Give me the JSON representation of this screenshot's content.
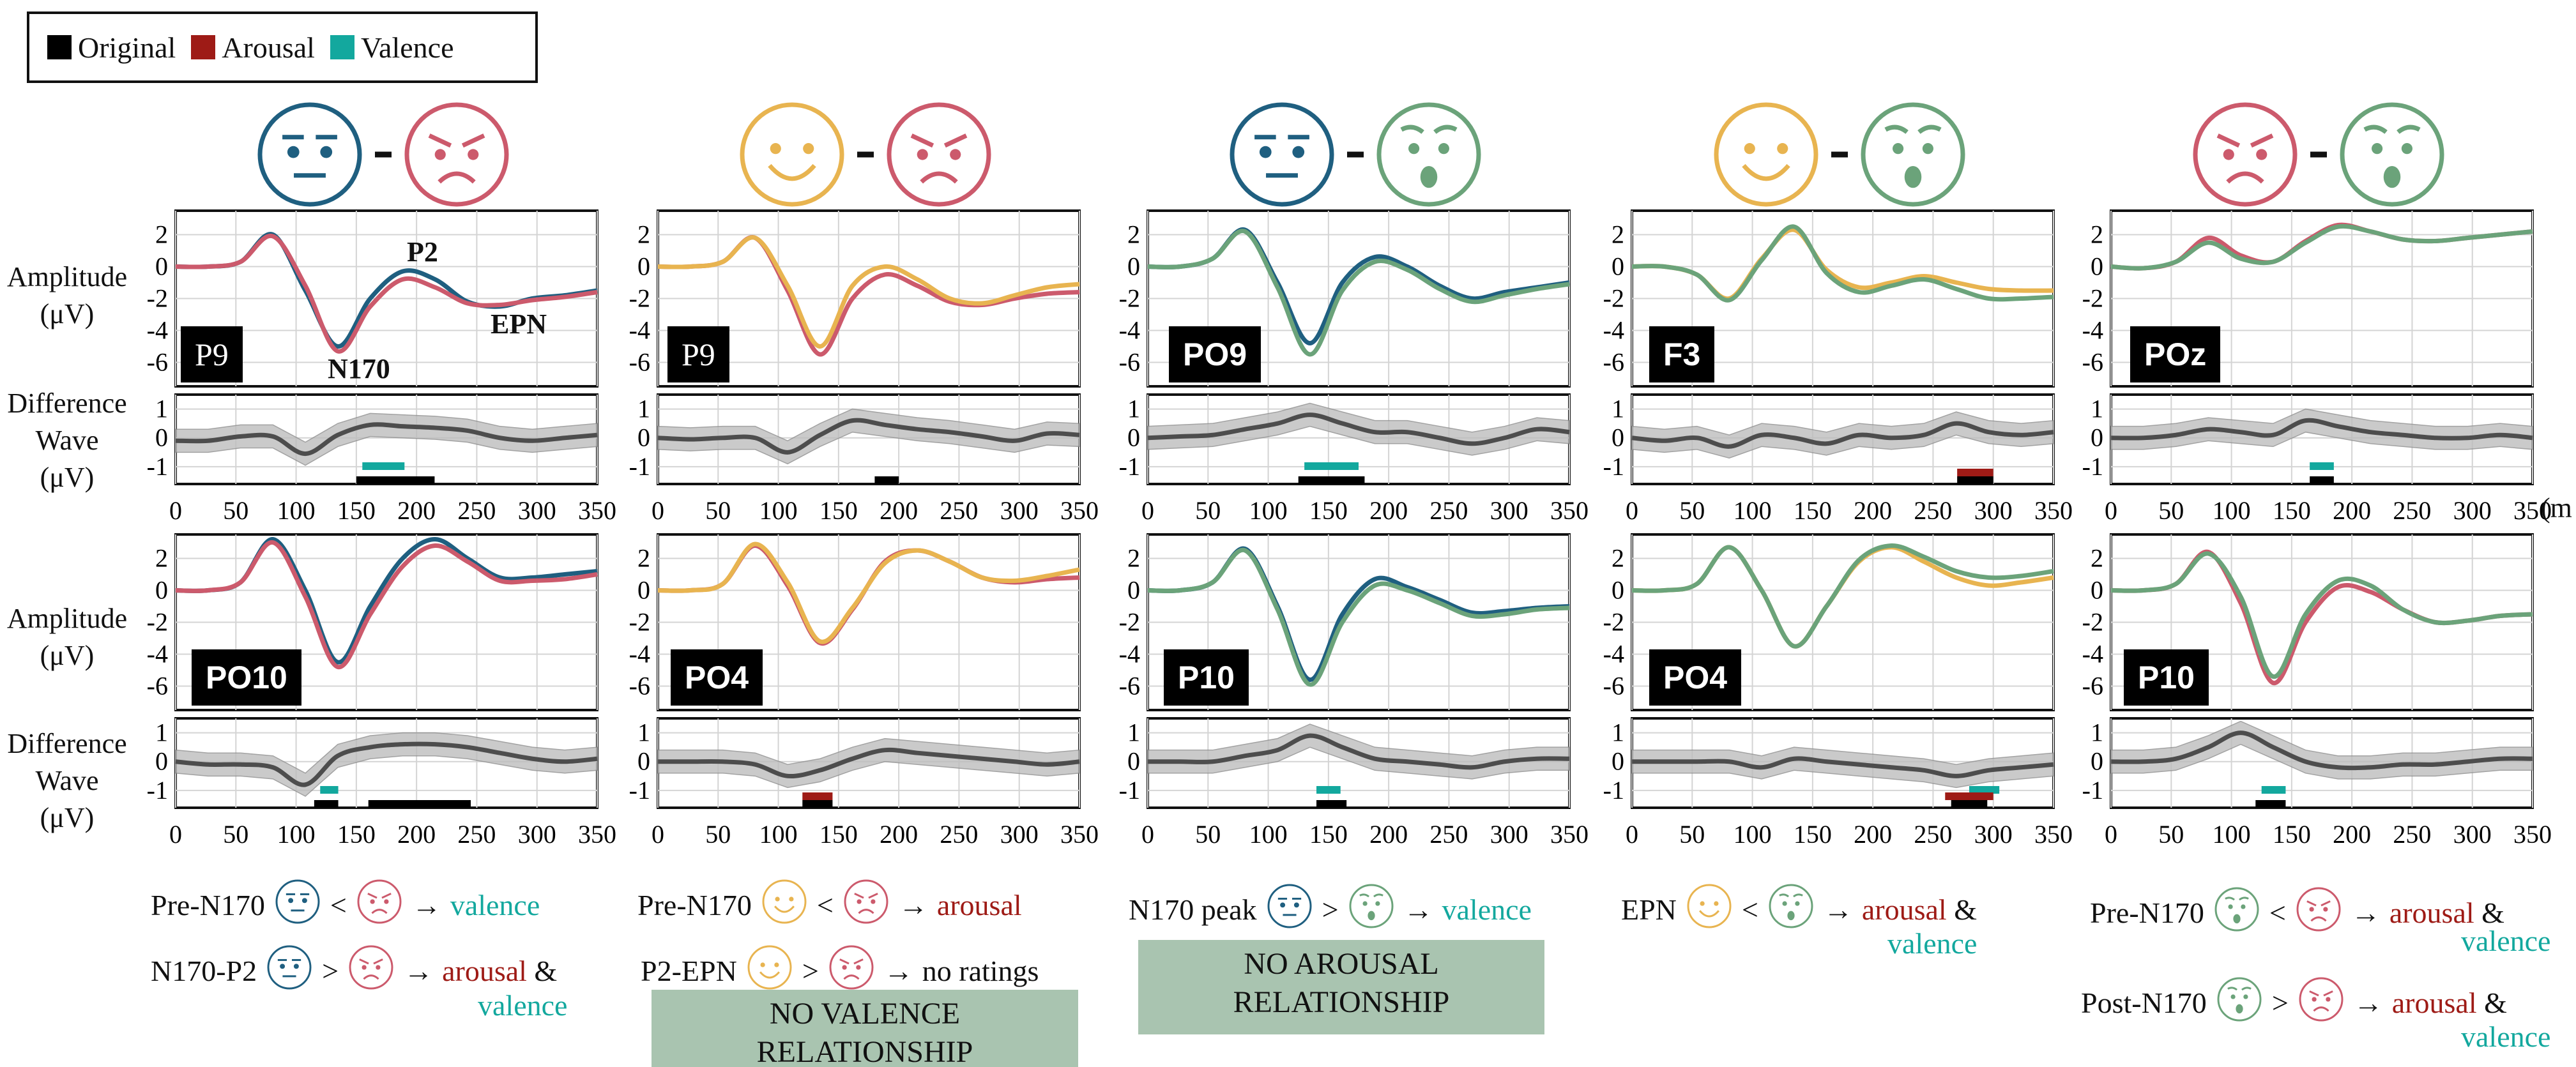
{
  "legend": {
    "items": [
      {
        "label": "Original",
        "color": "#000000"
      },
      {
        "label": "Arousal",
        "color": "#9e1b16"
      },
      {
        "label": "Valence",
        "color": "#13a89e"
      }
    ]
  },
  "row_labels": {
    "amplitude": "Amplitude",
    "amplitude_unit": "(μV)",
    "difference1": "Difference",
    "difference2": "Wave",
    "difference_unit": "(μV)"
  },
  "x_unit_partial": "(m",
  "colors": {
    "neutral": "#1f5f80",
    "angry": "#cc5a6c",
    "happy": "#e8b450",
    "surprised": "#6ba37a",
    "original_trace": "#1f5f80",
    "arousal_marker": "#9e1b16",
    "valence_marker": "#13a89e",
    "no_relationship_box": "#a9c4b0"
  },
  "columns": [
    {
      "faces": [
        "neutral-face",
        "angry-face"
      ]
    },
    {
      "faces": [
        "happy-face",
        "angry-face"
      ]
    },
    {
      "faces": [
        "neutral-face",
        "surprised-face"
      ]
    },
    {
      "faces": [
        "happy-face",
        "surprised-face"
      ]
    },
    {
      "faces": [
        "angry-face",
        "surprised-face"
      ]
    }
  ],
  "erp_annotations": {
    "n170": "N170",
    "p2": "P2",
    "epn": "EPN"
  },
  "channel_labels": [
    "P9",
    "P9",
    "PO9",
    "F3",
    "POz",
    "PO10",
    "PO4",
    "P10",
    "PO4",
    "P10"
  ],
  "findings": {
    "col1": [
      {
        "label": "Pre-N170",
        "op": "<",
        "result": [
          {
            "t": "valence",
            "c": "val"
          }
        ]
      },
      {
        "label": "N170-P2",
        "op": ">",
        "result": [
          {
            "t": "arousal",
            "c": "aro"
          },
          {
            "t": " &",
            "c": ""
          }
        ],
        "result2": "valence"
      }
    ],
    "col2": [
      {
        "label": "Pre-N170",
        "op": "<",
        "result": [
          {
            "t": "arousal",
            "c": "aro"
          }
        ]
      },
      {
        "label": "P2-EPN",
        "op": ">",
        "result": [
          {
            "t": "no ratings",
            "c": ""
          }
        ]
      }
    ],
    "col3": [
      {
        "label": "N170 peak",
        "op": ">",
        "result": [
          {
            "t": "valence",
            "c": "val"
          }
        ]
      }
    ],
    "col4": [
      {
        "label": "EPN",
        "op": "<",
        "result": [
          {
            "t": "arousal",
            "c": "aro"
          },
          {
            "t": " &",
            "c": ""
          }
        ],
        "result2": "valence"
      }
    ],
    "col5": [
      {
        "label": "Pre-N170",
        "op": "<",
        "result": [
          {
            "t": "arousal",
            "c": "aro"
          },
          {
            "t": " &",
            "c": ""
          }
        ],
        "result2": "valence"
      },
      {
        "label": "Post-N170",
        "op": ">",
        "result": [
          {
            "t": "arousal",
            "c": "aro"
          },
          {
            "t": " &",
            "c": ""
          }
        ],
        "result2": "valence"
      }
    ]
  },
  "no_relationship": {
    "valence_l1": "NO VALENCE",
    "valence_l2": "RELATIONSHIP",
    "arousal_l1": "NO AROUSAL",
    "arousal_l2": "RELATIONSHIP"
  },
  "chart_data": {
    "type": "line",
    "x_ticks": [
      0,
      50,
      100,
      150,
      200,
      250,
      300,
      350
    ],
    "xlim": [
      0,
      350
    ],
    "amplitude_yticks": [
      2,
      0,
      -2,
      -4,
      -6
    ],
    "amplitude_ylim": [
      -7.5,
      3.5
    ],
    "difference_yticks": [
      1,
      0,
      -1
    ],
    "difference_ylim": [
      -1.6,
      1.5
    ],
    "grid": true,
    "legend_position": "top-left",
    "panels": [
      {
        "row": 0,
        "col": 0,
        "channel": "P9",
        "series": [
          {
            "color": "#1f5f80",
            "y": [
              0,
              0,
              0.3,
              2.0,
              -1.5,
              -5.0,
              -2.0,
              -0.3,
              -0.8,
              -2.2,
              -2.5,
              -2.0,
              -1.8,
              -1.5
            ]
          },
          {
            "color": "#cc5a6c",
            "y": [
              0,
              0,
              0.3,
              1.9,
              -1.2,
              -5.3,
              -2.5,
              -0.8,
              -1.3,
              -2.3,
              -2.4,
              -2.1,
              -1.9,
              -1.6
            ]
          }
        ],
        "diff": [
          -0.1,
          -0.1,
          0.05,
          0.05,
          -0.55,
          0.1,
          0.45,
          0.4,
          0.35,
          0.25,
          0.0,
          -0.1,
          0.0,
          0.1
        ],
        "markers": [
          {
            "type": "valence",
            "from": 155,
            "to": 190
          },
          {
            "type": "original",
            "from": 150,
            "to": 215
          }
        ]
      },
      {
        "row": 0,
        "col": 1,
        "channel": "P9",
        "series": [
          {
            "color": "#cc5a6c",
            "y": [
              0,
              0,
              0.3,
              1.8,
              -1.5,
              -5.5,
              -2.0,
              -0.5,
              -1.2,
              -2.2,
              -2.4,
              -2.0,
              -1.7,
              -1.6
            ]
          },
          {
            "color": "#e8b450",
            "y": [
              0,
              0,
              0.3,
              1.8,
              -1.2,
              -5.0,
              -1.2,
              0.0,
              -0.8,
              -2.0,
              -2.3,
              -1.8,
              -1.3,
              -1.1
            ]
          }
        ],
        "diff": [
          0,
          -0.05,
          0.0,
          0.0,
          -0.5,
          0.1,
          0.6,
          0.45,
          0.3,
          0.2,
          0.05,
          -0.1,
          0.15,
          0.1
        ],
        "markers": [
          {
            "type": "original",
            "from": 180,
            "to": 200
          }
        ]
      },
      {
        "row": 0,
        "col": 2,
        "channel": "PO9",
        "series": [
          {
            "color": "#1f5f80",
            "y": [
              0,
              0,
              0.5,
              2.3,
              -1.0,
              -4.8,
              -1.0,
              0.6,
              0.0,
              -1.2,
              -2.0,
              -1.6,
              -1.3,
              -1.0
            ]
          },
          {
            "color": "#6ba37a",
            "y": [
              0,
              0,
              0.5,
              2.2,
              -1.3,
              -5.5,
              -1.5,
              0.3,
              -0.2,
              -1.4,
              -2.2,
              -1.8,
              -1.4,
              -1.1
            ]
          }
        ],
        "diff": [
          0,
          0.05,
          0.1,
          0.3,
          0.5,
          0.8,
          0.5,
          0.2,
          0.2,
          0.0,
          -0.2,
          0.0,
          0.3,
          0.2
        ],
        "markers": [
          {
            "type": "valence",
            "from": 130,
            "to": 175
          },
          {
            "type": "original",
            "from": 125,
            "to": 180
          }
        ]
      },
      {
        "row": 0,
        "col": 3,
        "channel": "F3",
        "series": [
          {
            "color": "#e8b450",
            "y": [
              0,
              0,
              -0.5,
              -2.0,
              0.5,
              2.3,
              -0.2,
              -1.3,
              -1.0,
              -0.6,
              -1.0,
              -1.4,
              -1.5,
              -1.5
            ]
          },
          {
            "color": "#6ba37a",
            "y": [
              0,
              0,
              -0.5,
              -2.1,
              0.4,
              2.5,
              -0.4,
              -1.6,
              -1.2,
              -0.8,
              -1.4,
              -2.0,
              -2.0,
              -1.9
            ]
          }
        ],
        "diff": [
          0,
          -0.1,
          0.0,
          -0.3,
          0.1,
          0.0,
          -0.2,
          0.1,
          0.0,
          0.1,
          0.5,
          0.2,
          0.1,
          0.2
        ],
        "markers": [
          {
            "type": "arousal",
            "from": 270,
            "to": 300
          },
          {
            "type": "original",
            "from": 270,
            "to": 300
          }
        ]
      },
      {
        "row": 0,
        "col": 4,
        "channel": "POz",
        "series": [
          {
            "color": "#cc5a6c",
            "y": [
              0,
              -0.1,
              0.3,
              1.8,
              0.7,
              0.3,
              1.6,
              2.6,
              2.2,
              1.7,
              1.6,
              1.8,
              2.0,
              2.2
            ]
          },
          {
            "color": "#6ba37a",
            "y": [
              0,
              -0.1,
              0.3,
              1.5,
              0.5,
              0.3,
              1.5,
              2.5,
              2.2,
              1.7,
              1.6,
              1.8,
              2.0,
              2.2
            ]
          }
        ],
        "diff": [
          0,
          0.0,
          0.1,
          0.3,
          0.2,
          0.1,
          0.6,
          0.4,
          0.2,
          0.1,
          0.0,
          0.0,
          0.1,
          0.0
        ],
        "markers": [
          {
            "type": "valence",
            "from": 165,
            "to": 185
          },
          {
            "type": "original",
            "from": 165,
            "to": 185
          }
        ]
      },
      {
        "row": 1,
        "col": 0,
        "channel": "PO10",
        "series": [
          {
            "color": "#1f5f80",
            "y": [
              0,
              0,
              0.5,
              3.2,
              0.0,
              -4.5,
              -1.0,
              2.0,
              3.2,
              2.0,
              0.8,
              0.8,
              1.0,
              1.2
            ]
          },
          {
            "color": "#cc5a6c",
            "y": [
              0,
              0,
              0.5,
              3.0,
              -0.4,
              -4.8,
              -1.5,
              1.5,
              2.8,
              1.8,
              0.6,
              0.6,
              0.7,
              1.0
            ]
          }
        ],
        "diff": [
          0,
          -0.1,
          -0.1,
          -0.2,
          -0.8,
          0.2,
          0.5,
          0.6,
          0.6,
          0.5,
          0.3,
          0.1,
          0.0,
          0.1
        ],
        "markers": [
          {
            "type": "valence",
            "from": 120,
            "to": 135
          },
          {
            "type": "original",
            "from": 115,
            "to": 135
          },
          {
            "type": "original",
            "from": 160,
            "to": 245
          }
        ]
      },
      {
        "row": 1,
        "col": 1,
        "channel": "PO4",
        "series": [
          {
            "color": "#cc5a6c",
            "y": [
              0,
              0,
              0.4,
              2.8,
              0.3,
              -3.3,
              -1.2,
              1.8,
              2.5,
              1.8,
              0.8,
              0.5,
              0.7,
              0.8
            ]
          },
          {
            "color": "#e8b450",
            "y": [
              0,
              0,
              0.4,
              2.9,
              0.5,
              -3.2,
              -1.1,
              1.7,
              2.5,
              1.8,
              0.8,
              0.6,
              0.9,
              1.3
            ]
          }
        ],
        "diff": [
          0,
          0.0,
          0.0,
          -0.1,
          -0.5,
          -0.3,
          0.1,
          0.4,
          0.3,
          0.2,
          0.1,
          0.0,
          -0.1,
          0.0
        ],
        "markers": [
          {
            "type": "arousal",
            "from": 120,
            "to": 145
          },
          {
            "type": "original",
            "from": 120,
            "to": 145
          }
        ]
      },
      {
        "row": 1,
        "col": 2,
        "channel": "P10",
        "series": [
          {
            "color": "#1f5f80",
            "y": [
              0,
              0,
              0.5,
              2.6,
              -1.0,
              -5.6,
              -1.5,
              0.7,
              0.2,
              -0.6,
              -1.4,
              -1.3,
              -1.1,
              -1.0
            ]
          },
          {
            "color": "#6ba37a",
            "y": [
              0,
              0,
              0.5,
              2.5,
              -1.2,
              -5.9,
              -2.0,
              0.3,
              0.0,
              -0.8,
              -1.6,
              -1.5,
              -1.2,
              -1.1
            ]
          }
        ],
        "diff": [
          0,
          0.0,
          0.0,
          0.2,
          0.4,
          0.9,
          0.5,
          0.1,
          0.0,
          -0.1,
          -0.2,
          0.0,
          0.1,
          0.1
        ],
        "markers": [
          {
            "type": "valence",
            "from": 140,
            "to": 160
          },
          {
            "type": "original",
            "from": 140,
            "to": 165
          }
        ]
      },
      {
        "row": 1,
        "col": 3,
        "channel": "PO4",
        "series": [
          {
            "color": "#e8b450",
            "y": [
              0,
              0,
              0.4,
              2.7,
              0.0,
              -3.5,
              -1.0,
              1.8,
              2.7,
              1.8,
              0.8,
              0.3,
              0.5,
              0.8
            ]
          },
          {
            "color": "#6ba37a",
            "y": [
              0,
              0,
              0.4,
              2.7,
              0.0,
              -3.5,
              -1.0,
              1.9,
              2.8,
              2.1,
              1.2,
              0.8,
              0.9,
              1.2
            ]
          }
        ],
        "diff": [
          0,
          0.0,
          0.0,
          0.0,
          -0.2,
          0.1,
          0.0,
          -0.1,
          -0.2,
          -0.3,
          -0.5,
          -0.3,
          -0.2,
          -0.1
        ],
        "markers": [
          {
            "type": "valence",
            "from": 280,
            "to": 305
          },
          {
            "type": "arousal",
            "from": 260,
            "to": 300
          },
          {
            "type": "original",
            "from": 265,
            "to": 295
          }
        ]
      },
      {
        "row": 1,
        "col": 4,
        "channel": "P10",
        "series": [
          {
            "color": "#cc5a6c",
            "y": [
              0,
              0,
              0.4,
              2.4,
              -0.8,
              -5.8,
              -2.0,
              0.2,
              -0.1,
              -1.2,
              -2.0,
              -1.9,
              -1.6,
              -1.5
            ]
          },
          {
            "color": "#6ba37a",
            "y": [
              0,
              0,
              0.4,
              2.3,
              -0.4,
              -5.4,
              -1.5,
              0.6,
              0.3,
              -1.2,
              -2.0,
              -1.9,
              -1.6,
              -1.5
            ]
          }
        ],
        "diff": [
          0,
          0.0,
          0.1,
          0.5,
          1.0,
          0.5,
          0.0,
          -0.2,
          -0.2,
          -0.1,
          -0.1,
          0.0,
          0.1,
          0.1
        ],
        "markers": [
          {
            "type": "valence",
            "from": 125,
            "to": 145
          },
          {
            "type": "original",
            "from": 120,
            "to": 145
          }
        ]
      }
    ]
  }
}
